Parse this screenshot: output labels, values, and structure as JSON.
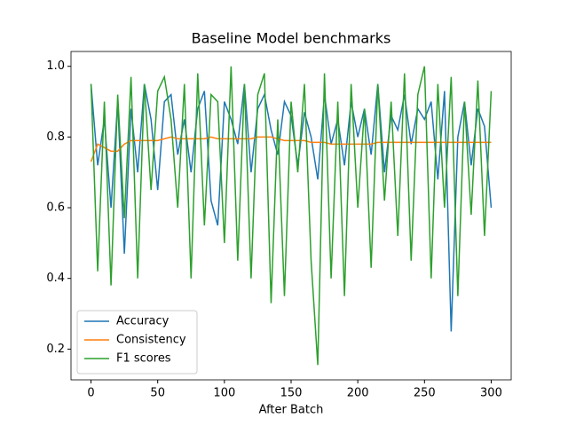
{
  "chart_data": {
    "type": "line",
    "title": "Baseline Model benchmarks",
    "x_label": "After Batch",
    "x": [
      0,
      5,
      10,
      15,
      20,
      25,
      30,
      35,
      40,
      45,
      50,
      55,
      60,
      65,
      70,
      75,
      80,
      85,
      90,
      95,
      100,
      105,
      110,
      115,
      120,
      125,
      130,
      135,
      140,
      145,
      150,
      155,
      160,
      165,
      170,
      175,
      180,
      185,
      190,
      195,
      200,
      205,
      210,
      215,
      220,
      225,
      230,
      235,
      240,
      245,
      250,
      255,
      260,
      265,
      270,
      275,
      280,
      285,
      290,
      295,
      300
    ],
    "series": [
      {
        "name": "Accuracy",
        "color": "#1f77b4",
        "values": [
          0.95,
          0.72,
          0.85,
          0.6,
          0.9,
          0.47,
          0.88,
          0.7,
          0.95,
          0.85,
          0.65,
          0.9,
          0.92,
          0.75,
          0.85,
          0.7,
          0.88,
          0.93,
          0.62,
          0.55,
          0.9,
          0.85,
          0.78,
          0.95,
          0.7,
          0.88,
          0.92,
          0.82,
          0.75,
          0.9,
          0.86,
          0.72,
          0.87,
          0.8,
          0.68,
          0.92,
          0.78,
          0.85,
          0.72,
          0.9,
          0.8,
          0.88,
          0.75,
          0.95,
          0.7,
          0.86,
          0.82,
          0.92,
          0.78,
          0.88,
          0.85,
          0.9,
          0.68,
          0.93,
          0.25,
          0.8,
          0.9,
          0.72,
          0.88,
          0.83,
          0.6
        ]
      },
      {
        "name": "Consistency",
        "color": "#ff7f0e",
        "values": [
          0.73,
          0.78,
          0.77,
          0.76,
          0.76,
          0.78,
          0.79,
          0.79,
          0.79,
          0.79,
          0.79,
          0.795,
          0.8,
          0.795,
          0.795,
          0.795,
          0.795,
          0.795,
          0.8,
          0.795,
          0.795,
          0.795,
          0.795,
          0.795,
          0.795,
          0.8,
          0.8,
          0.8,
          0.795,
          0.79,
          0.79,
          0.79,
          0.79,
          0.785,
          0.785,
          0.785,
          0.78,
          0.78,
          0.78,
          0.78,
          0.78,
          0.78,
          0.78,
          0.785,
          0.785,
          0.785,
          0.785,
          0.785,
          0.785,
          0.785,
          0.785,
          0.785,
          0.785,
          0.785,
          0.785,
          0.785,
          0.785,
          0.785,
          0.785,
          0.785,
          0.785
        ]
      },
      {
        "name": "F1 scores",
        "color": "#2ca02c",
        "values": [
          0.95,
          0.42,
          0.9,
          0.38,
          0.92,
          0.57,
          0.97,
          0.4,
          0.95,
          0.65,
          0.93,
          0.97,
          0.85,
          0.6,
          0.95,
          0.4,
          0.98,
          0.55,
          0.92,
          0.9,
          0.5,
          1.0,
          0.45,
          0.95,
          0.4,
          0.92,
          0.98,
          0.33,
          0.85,
          0.35,
          0.9,
          0.7,
          0.95,
          0.45,
          0.155,
          0.98,
          0.4,
          0.9,
          0.35,
          0.95,
          0.6,
          0.88,
          0.43,
          0.95,
          0.62,
          0.9,
          0.52,
          0.98,
          0.45,
          0.92,
          1.0,
          0.4,
          0.95,
          0.6,
          0.97,
          0.35,
          0.9,
          0.58,
          0.96,
          0.52,
          0.93
        ]
      }
    ],
    "xlim": [
      -15,
      315
    ],
    "ylim": [
      0.113,
      1.042
    ],
    "xticks": [
      0,
      50,
      100,
      150,
      200,
      250,
      300
    ],
    "yticks": [
      0.2,
      0.4,
      0.6,
      0.8,
      {
        "value": 1,
        "label": "1.0"
      }
    ],
    "legend": "lower left",
    "grid": false
  }
}
